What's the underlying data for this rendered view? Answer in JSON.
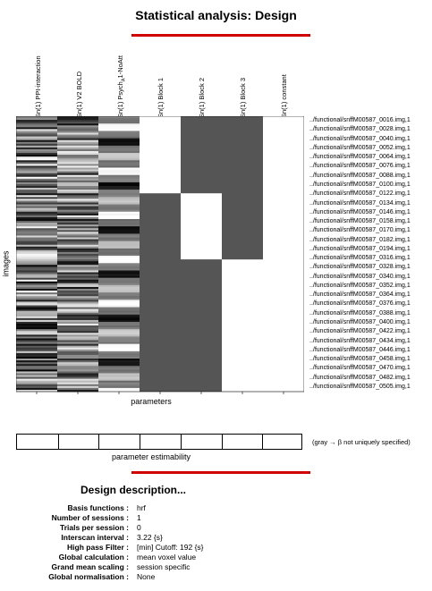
{
  "title": "Statistical analysis: Design",
  "columns": [
    {
      "label": "Sn(1) PPI-interaction",
      "type": "regressor"
    },
    {
      "label": "Sn(1) V2 BOLD",
      "type": "regressor"
    },
    {
      "label_main": "Sn(1) Psych",
      "label_sub": "A",
      "label_tail": "1-NoAtt",
      "type": "regressor"
    },
    {
      "label": "Sn(1) Block 1",
      "type": "block"
    },
    {
      "label": "Sn(1) Block 2",
      "type": "block"
    },
    {
      "label": "Sn(1) Block 3",
      "type": "block"
    },
    {
      "label": "Sn(1) constant",
      "type": "constant"
    }
  ],
  "row_labels": [
    "../functional/snffM00587_0016.img,1",
    "../functional/snffM00587_0028.img,1",
    "../functional/snffM00587_0040.img,1",
    "../functional/snffM00587_0052.img,1",
    "../functional/snffM00587_0064.img,1",
    "../functional/snffM00587_0076.img,1",
    "../functional/snffM00587_0088.img,1",
    "../functional/snffM00587_0100.img,1",
    "../functional/snffM00587_0122.img,1",
    "../functional/snffM00587_0134.img,1",
    "../functional/snffM00587_0146.img,1",
    "../functional/snffM00587_0158.img,1",
    "../functional/snffM00587_0170.img,1",
    "../functional/snffM00587_0182.img,1",
    "../functional/snffM00587_0194.img,1",
    "../functional/snffM00587_0316.img,1",
    "../functional/snffM00587_0328.img,1",
    "../functional/snffM00587_0340.img,1",
    "../functional/snffM00587_0352.img,1",
    "../functional/snffM00587_0364.img,1",
    "../functional/snffM00587_0376.img,1",
    "../functional/snffM00587_0388.img,1",
    "../functional/snffM00587_0400.img,1",
    "../functional/snffM00587_0422.img,1",
    "../functional/snffM00587_0434.img,1",
    "../functional/snffM00587_0446.img,1",
    "../functional/snffM00587_0458.img,1",
    "../functional/snffM00587_0470.img,1",
    "../functional/snffM00587_0482.img,1",
    "../functional/snffM00587_0505.img,1"
  ],
  "block_segments": {
    "block1": [
      0,
      0.28
    ],
    "block2": [
      0.28,
      0.52
    ],
    "block3": [
      0.52,
      1.0
    ]
  },
  "colors": {
    "accent": "#d00000",
    "block_on": "#ffffff",
    "block_off": "#555555"
  },
  "axis": {
    "images": "images",
    "parameters": "parameters"
  },
  "estimability": {
    "label": "parameter estimability",
    "note": "(gray → β not uniquely specified)"
  },
  "description": {
    "title": "Design description...",
    "items": [
      {
        "label": "Basis functions :",
        "value": "hrf"
      },
      {
        "label": "Number of sessions :",
        "value": "1"
      },
      {
        "label": "Trials per session :",
        "value": "0"
      },
      {
        "label": "Interscan interval :",
        "value": "3.22 {s}"
      },
      {
        "label": "High pass Filter :",
        "value": "[min] Cutoff: 192 {s}"
      },
      {
        "label": "Global calculation :",
        "value": "mean voxel value"
      },
      {
        "label": "Grand mean scaling :",
        "value": "session specific"
      },
      {
        "label": "Global normalisation :",
        "value": "None"
      }
    ]
  }
}
